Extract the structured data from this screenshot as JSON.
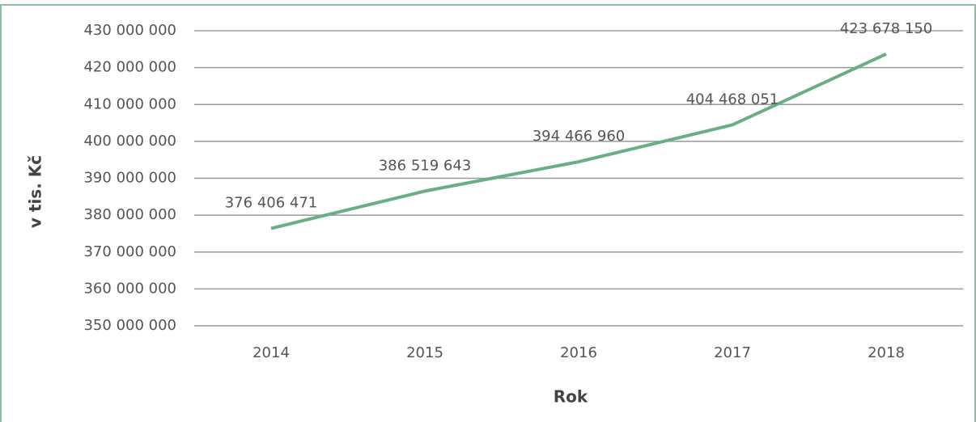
{
  "chart_data": {
    "type": "line",
    "categories": [
      "2014",
      "2015",
      "2016",
      "2017",
      "2018"
    ],
    "series": [
      {
        "color": "#6aae84",
        "values": [
          376406471,
          386519643,
          394466960,
          404468051,
          423678150
        ],
        "value_labels": [
          "376 406 471",
          "386 519 643",
          "394 466 960",
          "404 468 051",
          "423 678 150"
        ]
      }
    ],
    "ylim": [
      350000000,
      430000000
    ],
    "yticks": [
      {
        "value": 350000000,
        "label": "350 000 000"
      },
      {
        "value": 360000000,
        "label": "360 000 000"
      },
      {
        "value": 370000000,
        "label": "370 000 000"
      },
      {
        "value": 380000000,
        "label": "380 000 000"
      },
      {
        "value": 390000000,
        "label": "390 000 000"
      },
      {
        "value": 400000000,
        "label": "400 000 000"
      },
      {
        "value": 410000000,
        "label": "410 000 000"
      },
      {
        "value": 420000000,
        "label": "420 000 000"
      },
      {
        "value": 430000000,
        "label": "430 000 000"
      }
    ],
    "xlabel": "Rok",
    "ylabel": "v tis. Kč",
    "grid": true
  }
}
